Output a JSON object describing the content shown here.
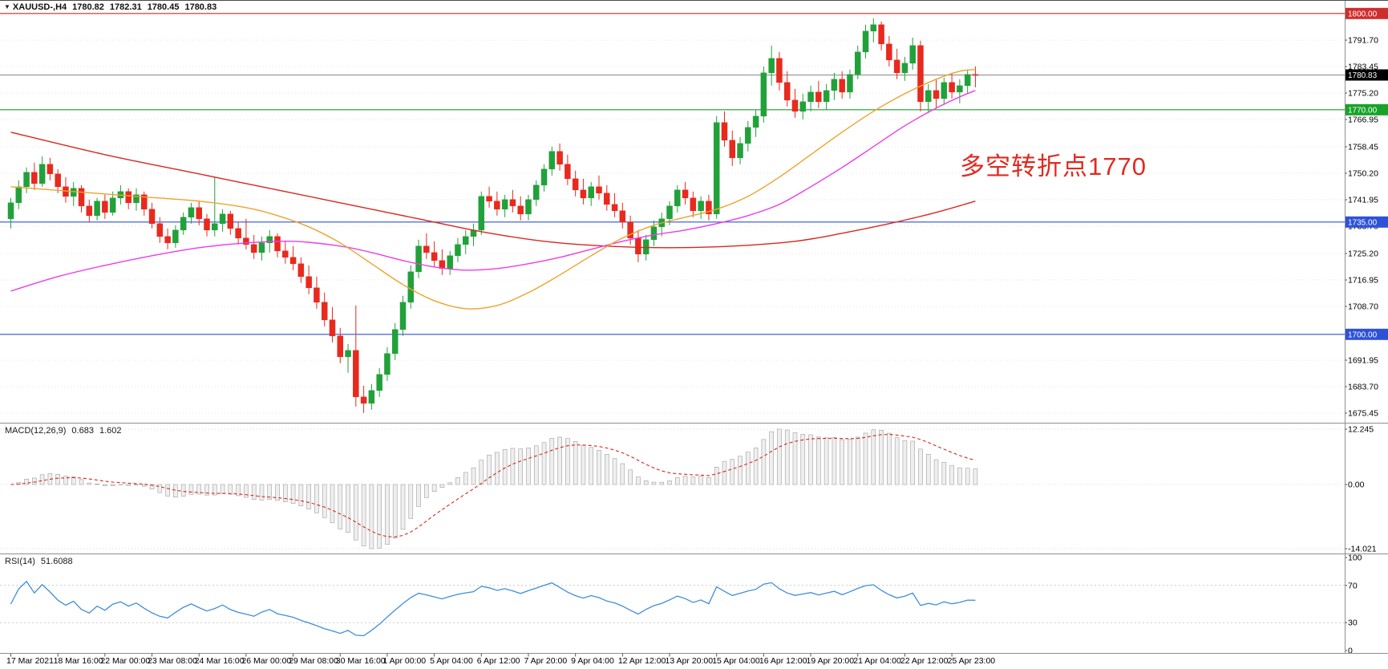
{
  "title": {
    "symbol": "XAUUSD-,H4",
    "open": "1780.82",
    "high": "1782.31",
    "low": "1780.45",
    "close": "1780.83"
  },
  "annotation": {
    "text": "多空转折点1770",
    "color": "#e02a20"
  },
  "indicators": {
    "macd": {
      "label": "MACD(12,26,9)",
      "value_main": "0.683",
      "value_signal": "1.602"
    },
    "rsi": {
      "label": "RSI(14)",
      "value": "51.6088"
    }
  },
  "colors": {
    "up": "#21a13a",
    "down": "#e8291e",
    "ma_red": "#d7281e",
    "ma_orange": "#eea32c",
    "ma_magenta": "#ea3dea",
    "line_red": "#d7281e",
    "line_green": "#17a327",
    "line_blue": "#2d52d8",
    "bid_line": "#9a9a9a",
    "macd_hist_fill": "#efefef",
    "macd_hist_stroke": "#9f9f9f",
    "macd_signal": "#d7281e",
    "rsi_line": "#3e8ede",
    "grid": "#e3e3e3",
    "separator": "#8f8f8f",
    "axis_text": "#000000"
  },
  "chart_data": {
    "type": "candlestick",
    "symbol": "XAUUSD",
    "timeframe": "H4",
    "price_range": [
      1673,
      1804
    ],
    "candles_per_label": 6,
    "x_labels": [
      "17 Mar 2021",
      "18 Mar 16:00",
      "22 Mar 00:00",
      "23 Mar 08:00",
      "24 Mar 16:00",
      "26 Mar 00:00",
      "29 Mar 08:00",
      "30 Mar 16:00",
      "1 Apr 00:00",
      "5 Apr 04:00",
      "6 Apr 12:00",
      "7 Apr 20:00",
      "9 Apr 04:00",
      "12 Apr 12:00",
      "13 Apr 20:00",
      "15 Apr 04:00",
      "16 Apr 12:00",
      "19 Apr 20:00",
      "21 Apr 04:00",
      "22 Apr 12:00",
      "25 Apr 23:00"
    ],
    "y_ticks": [
      "1791.70",
      "1783.45",
      "1775.20",
      "1766.95",
      "1758.45",
      "1750.20",
      "1741.95",
      "1733.70",
      "1725.20",
      "1716.95",
      "1708.70",
      "1691.95",
      "1683.70",
      "1675.45"
    ],
    "current_price": 1780.83,
    "horizontal_lines": [
      {
        "price": 1800.0,
        "label": "1800.00",
        "line_color": "#d7281e",
        "badge_color": "#cf2e2e"
      },
      {
        "price": 1780.83,
        "label": "1780.83",
        "line_color": "#9a9a9a",
        "badge_color": "#000000"
      },
      {
        "price": 1770.0,
        "label": "1770.00",
        "line_color": "#17a327",
        "badge_color": "#17a327"
      },
      {
        "price": 1735.0,
        "label": "1735.00",
        "line_color": "#2d52d8",
        "badge_color": "#2d52d8"
      },
      {
        "price": 1700.0,
        "label": "1700.00",
        "line_color": "#2d52d8",
        "badge_color": "#2d52d8"
      }
    ],
    "candles": [
      [
        1736,
        1742.5,
        1733,
        1741
      ],
      [
        1741,
        1748,
        1739,
        1746
      ],
      [
        1746,
        1752,
        1744,
        1750.5
      ],
      [
        1750.5,
        1753.5,
        1745,
        1747
      ],
      [
        1747,
        1755.5,
        1746,
        1753
      ],
      [
        1753,
        1755,
        1748,
        1750
      ],
      [
        1750,
        1751.5,
        1744,
        1746
      ],
      [
        1746,
        1749,
        1741,
        1743
      ],
      [
        1743,
        1747.5,
        1740,
        1745.5
      ],
      [
        1745.5,
        1746.5,
        1738,
        1740
      ],
      [
        1740,
        1742,
        1735,
        1737
      ],
      [
        1737,
        1742.5,
        1735.5,
        1741.5
      ],
      [
        1741.5,
        1743.5,
        1736,
        1738
      ],
      [
        1738,
        1744.5,
        1737,
        1742.5
      ],
      [
        1742.5,
        1746.5,
        1740.5,
        1744.5
      ],
      [
        1744.5,
        1745.5,
        1739,
        1741
      ],
      [
        1741,
        1745.5,
        1738.5,
        1743.5
      ],
      [
        1743.5,
        1744.5,
        1737,
        1739
      ],
      [
        1739,
        1741,
        1733,
        1734.5
      ],
      [
        1734.5,
        1736.5,
        1728.5,
        1730.5
      ],
      [
        1730.5,
        1733,
        1726.5,
        1728.5
      ],
      [
        1728.5,
        1734,
        1727,
        1732.5
      ],
      [
        1732.5,
        1738,
        1731,
        1736.5
      ],
      [
        1736.5,
        1741,
        1734.5,
        1739.5
      ],
      [
        1739.5,
        1741.5,
        1734,
        1736
      ],
      [
        1736,
        1737.5,
        1730.5,
        1732.5
      ],
      [
        1732.5,
        1749,
        1730.5,
        1734.5
      ],
      [
        1734.5,
        1739,
        1732,
        1737.5
      ],
      [
        1737.5,
        1738.5,
        1731,
        1733
      ],
      [
        1733,
        1735,
        1728,
        1730
      ],
      [
        1730,
        1736,
        1726.5,
        1728
      ],
      [
        1728,
        1731,
        1723.5,
        1725.5
      ],
      [
        1725.5,
        1730.5,
        1723,
        1728.5
      ],
      [
        1728.5,
        1732.5,
        1725.5,
        1730.5
      ],
      [
        1730.5,
        1731.5,
        1724,
        1726
      ],
      [
        1726,
        1729,
        1722,
        1724
      ],
      [
        1724,
        1727.5,
        1720,
        1722
      ],
      [
        1722,
        1724,
        1716,
        1718
      ],
      [
        1718,
        1721.5,
        1712.5,
        1714.5
      ],
      [
        1714.5,
        1718,
        1708,
        1710
      ],
      [
        1710,
        1713,
        1702.5,
        1704.5
      ],
      [
        1704.5,
        1708.5,
        1697.5,
        1699.5
      ],
      [
        1699.5,
        1702,
        1691,
        1693
      ],
      [
        1693,
        1697,
        1688,
        1695
      ],
      [
        1695,
        1709,
        1677.5,
        1680.5
      ],
      [
        1680.5,
        1684,
        1675.5,
        1678.5
      ],
      [
        1678.5,
        1684.5,
        1676.5,
        1682.5
      ],
      [
        1682.5,
        1689.5,
        1680.5,
        1687.5
      ],
      [
        1687.5,
        1696,
        1685.5,
        1694
      ],
      [
        1694,
        1703.5,
        1692,
        1701.5
      ],
      [
        1701.5,
        1712,
        1699.5,
        1710
      ],
      [
        1710,
        1721.5,
        1708,
        1719.5
      ],
      [
        1719.5,
        1729.5,
        1717.5,
        1727.5
      ],
      [
        1727.5,
        1731.5,
        1723.5,
        1725.5
      ],
      [
        1725.5,
        1729,
        1721,
        1723
      ],
      [
        1723,
        1726.5,
        1718.5,
        1720.5
      ],
      [
        1720.5,
        1726,
        1718.5,
        1724.5
      ],
      [
        1724.5,
        1730,
        1722.5,
        1728
      ],
      [
        1728,
        1732.5,
        1725,
        1730.5
      ],
      [
        1730.5,
        1734.5,
        1727.5,
        1732.5
      ],
      [
        1732.5,
        1744.5,
        1731,
        1743
      ],
      [
        1743,
        1746,
        1739.5,
        1741.5
      ],
      [
        1741.5,
        1744.5,
        1737,
        1739
      ],
      [
        1739,
        1743.5,
        1736.5,
        1742
      ],
      [
        1742,
        1745,
        1738,
        1740
      ],
      [
        1740,
        1743,
        1735.5,
        1737.5
      ],
      [
        1737.5,
        1743.5,
        1735.5,
        1742
      ],
      [
        1742,
        1748,
        1740,
        1746.5
      ],
      [
        1746.5,
        1753,
        1744.5,
        1751.5
      ],
      [
        1751.5,
        1758.5,
        1749.5,
        1757
      ],
      [
        1757,
        1759.5,
        1751,
        1753
      ],
      [
        1753,
        1756,
        1746.5,
        1748.5
      ],
      [
        1748.5,
        1751,
        1743,
        1745
      ],
      [
        1745,
        1748.5,
        1740.5,
        1742.5
      ],
      [
        1742.5,
        1747.5,
        1740,
        1746
      ],
      [
        1746,
        1749.5,
        1742,
        1744
      ],
      [
        1744,
        1746.5,
        1738.5,
        1740.5
      ],
      [
        1740.5,
        1744,
        1736.5,
        1738.5
      ],
      [
        1738.5,
        1741,
        1733,
        1735
      ],
      [
        1735,
        1737,
        1728,
        1730
      ],
      [
        1730,
        1732.5,
        1722.5,
        1725
      ],
      [
        1725,
        1731,
        1723,
        1729.5
      ],
      [
        1729.5,
        1735.5,
        1727.5,
        1733.5
      ],
      [
        1733.5,
        1738,
        1730.5,
        1736
      ],
      [
        1736,
        1741.5,
        1734,
        1740
      ],
      [
        1740,
        1746.5,
        1738,
        1745
      ],
      [
        1745,
        1747.5,
        1740.5,
        1742.5
      ],
      [
        1742.5,
        1744.5,
        1736.5,
        1738.5
      ],
      [
        1738.5,
        1743,
        1736,
        1741.5
      ],
      [
        1741.5,
        1743.5,
        1735.5,
        1737.5
      ],
      [
        1737.5,
        1768,
        1736,
        1766
      ],
      [
        1766,
        1769.5,
        1758.5,
        1760.5
      ],
      [
        1760.5,
        1763.5,
        1752.5,
        1755
      ],
      [
        1755,
        1761.5,
        1753,
        1759.5
      ],
      [
        1759.5,
        1766.5,
        1757,
        1764.5
      ],
      [
        1764.5,
        1770,
        1761.5,
        1768
      ],
      [
        1768,
        1783.5,
        1766,
        1781.5
      ],
      [
        1781.5,
        1790,
        1777.5,
        1786
      ],
      [
        1786,
        1788,
        1776,
        1778.5
      ],
      [
        1778.5,
        1782,
        1771,
        1773
      ],
      [
        1773,
        1776.5,
        1767.5,
        1769.5
      ],
      [
        1769.5,
        1775,
        1767,
        1772.5
      ],
      [
        1772.5,
        1777.5,
        1769.5,
        1775.5
      ],
      [
        1775.5,
        1779,
        1770.5,
        1772.5
      ],
      [
        1772.5,
        1778,
        1770,
        1776
      ],
      [
        1776,
        1781.5,
        1773,
        1779.5
      ],
      [
        1779.5,
        1782,
        1773.5,
        1775.5
      ],
      [
        1775.5,
        1782.5,
        1773.5,
        1781
      ],
      [
        1781,
        1790,
        1779.5,
        1788
      ],
      [
        1788,
        1796.5,
        1786,
        1794.5
      ],
      [
        1794.5,
        1798.5,
        1791,
        1796.5
      ],
      [
        1796.5,
        1797.5,
        1788.5,
        1790.5
      ],
      [
        1790.5,
        1793,
        1783.5,
        1785.5
      ],
      [
        1785.5,
        1789,
        1779.5,
        1781.5
      ],
      [
        1781.5,
        1786.5,
        1779,
        1784.5
      ],
      [
        1784.5,
        1792.5,
        1782.5,
        1790
      ],
      [
        1790,
        1791.5,
        1769.5,
        1772.5
      ],
      [
        1772.5,
        1778,
        1769,
        1776
      ],
      [
        1776,
        1779.5,
        1770.5,
        1773.5
      ],
      [
        1773.5,
        1780,
        1771.5,
        1778.5
      ],
      [
        1778.5,
        1781.5,
        1773.5,
        1775.5
      ],
      [
        1775.5,
        1779.5,
        1772,
        1777.5
      ],
      [
        1777.5,
        1782.5,
        1775,
        1781
      ],
      [
        1781,
        1783.5,
        1777,
        1780.83
      ]
    ],
    "moving_averages": [
      {
        "name": "ma-slow-red",
        "color": "#d7281e",
        "points": [
          [
            0,
            1763
          ],
          [
            12,
            1756
          ],
          [
            24,
            1750
          ],
          [
            36,
            1744
          ],
          [
            44,
            1740
          ],
          [
            52,
            1736
          ],
          [
            60,
            1732
          ],
          [
            68,
            1729
          ],
          [
            76,
            1727.5
          ],
          [
            84,
            1727
          ],
          [
            92,
            1727.5
          ],
          [
            100,
            1729
          ],
          [
            106,
            1731.5
          ],
          [
            112,
            1734.5
          ],
          [
            118,
            1738
          ],
          [
            123,
            1741.5
          ]
        ]
      },
      {
        "name": "ma-medium-magenta",
        "color": "#ea3dea",
        "points": [
          [
            0,
            1713.5
          ],
          [
            6,
            1718
          ],
          [
            12,
            1721.5
          ],
          [
            18,
            1724.5
          ],
          [
            24,
            1727
          ],
          [
            30,
            1728.5
          ],
          [
            36,
            1729
          ],
          [
            42,
            1727.5
          ],
          [
            46,
            1725.5
          ],
          [
            50,
            1723
          ],
          [
            54,
            1721
          ],
          [
            58,
            1720
          ],
          [
            62,
            1720.5
          ],
          [
            66,
            1722
          ],
          [
            70,
            1724
          ],
          [
            74,
            1726.5
          ],
          [
            78,
            1729
          ],
          [
            82,
            1731
          ],
          [
            86,
            1732.5
          ],
          [
            90,
            1734.5
          ],
          [
            94,
            1737
          ],
          [
            98,
            1740.5
          ],
          [
            102,
            1746
          ],
          [
            106,
            1752
          ],
          [
            110,
            1758.5
          ],
          [
            114,
            1765
          ],
          [
            118,
            1770.5
          ],
          [
            121,
            1774
          ],
          [
            123,
            1776
          ]
        ]
      },
      {
        "name": "ma-fast-orange",
        "color": "#eea32c",
        "points": [
          [
            0,
            1746
          ],
          [
            8,
            1744.5
          ],
          [
            16,
            1743
          ],
          [
            24,
            1741.5
          ],
          [
            30,
            1739.5
          ],
          [
            34,
            1737
          ],
          [
            38,
            1733.5
          ],
          [
            42,
            1728.5
          ],
          [
            46,
            1722
          ],
          [
            50,
            1715.5
          ],
          [
            54,
            1710.5
          ],
          [
            58,
            1708
          ],
          [
            62,
            1709
          ],
          [
            66,
            1713
          ],
          [
            70,
            1718.5
          ],
          [
            74,
            1724.5
          ],
          [
            78,
            1730
          ],
          [
            82,
            1734
          ],
          [
            86,
            1736.5
          ],
          [
            90,
            1739
          ],
          [
            94,
            1743
          ],
          [
            98,
            1749
          ],
          [
            102,
            1756
          ],
          [
            106,
            1763
          ],
          [
            110,
            1769.5
          ],
          [
            114,
            1775
          ],
          [
            118,
            1779.5
          ],
          [
            121,
            1782
          ],
          [
            123,
            1782.5
          ]
        ]
      }
    ],
    "macd": {
      "params": [
        12,
        26,
        9
      ],
      "current_main": 0.683,
      "current_signal": 1.602,
      "axis": [
        "12.245",
        "0.00",
        "-14.021"
      ]
    },
    "rsi": {
      "period": 14,
      "current": 51.6088,
      "axis": [
        "100",
        "70",
        "30",
        "0"
      ],
      "levels": [
        70,
        30
      ]
    }
  }
}
